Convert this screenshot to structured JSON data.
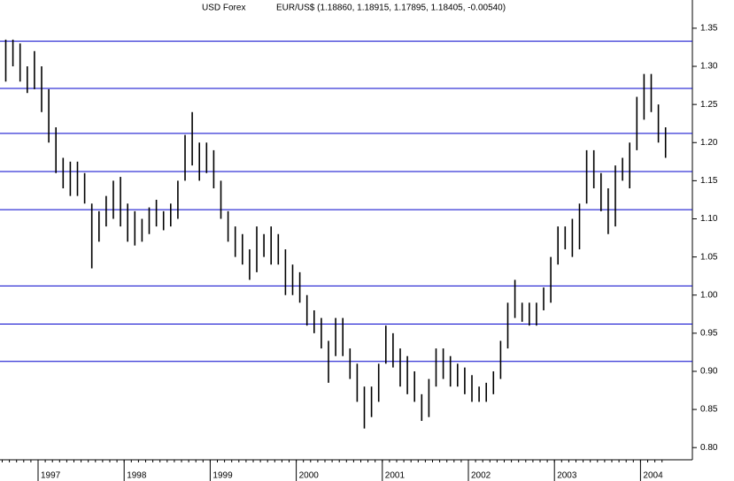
{
  "chart_data": {
    "type": "hilo",
    "title": "USD Forex",
    "subtitle": "EUR/US$ (1.18860, 1.18915, 1.17895, 1.18405, -0.00540)",
    "categories": [
      null,
      null,
      null,
      null,
      null,
      "1997",
      null,
      null,
      null,
      null,
      null,
      null,
      null,
      null,
      null,
      null,
      null,
      "1998",
      null,
      null,
      null,
      null,
      null,
      null,
      null,
      null,
      null,
      null,
      null,
      "1999",
      null,
      null,
      null,
      null,
      null,
      null,
      null,
      null,
      null,
      null,
      null,
      "2000",
      null,
      null,
      null,
      null,
      null,
      null,
      null,
      null,
      null,
      null,
      null,
      "2001",
      null,
      null,
      null,
      null,
      null,
      null,
      null,
      null,
      null,
      null,
      null,
      "2002",
      null,
      null,
      null,
      null,
      null,
      null,
      null,
      null,
      null,
      null,
      null,
      "2003",
      null,
      null,
      null,
      null,
      null,
      null,
      null,
      null,
      null,
      null,
      null,
      "2004",
      null,
      null,
      null
    ],
    "high": [
      1.335,
      1.335,
      1.33,
      1.3,
      1.32,
      1.3,
      1.27,
      1.22,
      1.18,
      1.175,
      1.175,
      1.16,
      1.12,
      1.11,
      1.13,
      1.15,
      1.155,
      1.12,
      1.11,
      1.1,
      1.115,
      1.125,
      1.11,
      1.12,
      1.15,
      1.21,
      1.24,
      1.2,
      1.2,
      1.19,
      1.15,
      1.11,
      1.09,
      1.08,
      1.06,
      1.09,
      1.08,
      1.09,
      1.08,
      1.06,
      1.04,
      1.03,
      1.0,
      0.98,
      0.97,
      0.94,
      0.97,
      0.97,
      0.93,
      0.91,
      0.88,
      0.88,
      0.91,
      0.96,
      0.95,
      0.93,
      0.92,
      0.9,
      0.87,
      0.89,
      0.93,
      0.93,
      0.92,
      0.91,
      0.905,
      0.895,
      0.88,
      0.885,
      0.9,
      0.94,
      0.99,
      1.02,
      0.99,
      0.99,
      0.99,
      1.01,
      1.05,
      1.09,
      1.09,
      1.1,
      1.12,
      1.19,
      1.19,
      1.16,
      1.14,
      1.17,
      1.18,
      1.2,
      1.26,
      1.29,
      1.29,
      1.25,
      1.22
    ],
    "low": [
      1.28,
      1.3,
      1.28,
      1.265,
      1.27,
      1.24,
      1.2,
      1.16,
      1.14,
      1.13,
      1.13,
      1.12,
      1.035,
      1.07,
      1.09,
      1.1,
      1.09,
      1.07,
      1.065,
      1.07,
      1.08,
      1.09,
      1.085,
      1.09,
      1.1,
      1.15,
      1.17,
      1.15,
      1.16,
      1.14,
      1.1,
      1.07,
      1.05,
      1.04,
      1.02,
      1.03,
      1.05,
      1.04,
      1.04,
      1.0,
      1.0,
      0.99,
      0.96,
      0.95,
      0.93,
      0.885,
      0.92,
      0.92,
      0.89,
      0.86,
      0.825,
      0.84,
      0.86,
      0.91,
      0.905,
      0.88,
      0.87,
      0.86,
      0.835,
      0.84,
      0.88,
      0.89,
      0.88,
      0.88,
      0.87,
      0.86,
      0.86,
      0.86,
      0.87,
      0.89,
      0.93,
      0.97,
      0.965,
      0.96,
      0.96,
      0.98,
      0.99,
      1.04,
      1.06,
      1.05,
      1.06,
      1.12,
      1.14,
      1.11,
      1.08,
      1.09,
      1.15,
      1.14,
      1.19,
      1.23,
      1.24,
      1.2,
      1.18
    ],
    "color": "#000000",
    "hlines": [
      1.333,
      1.271,
      1.212,
      1.162,
      1.112,
      1.012,
      0.962,
      0.913
    ],
    "hline_color": "#0000cc",
    "ylim": [
      0.784,
      1.387
    ],
    "yticks": [
      {
        "value": 0.8,
        "label": "0.80"
      },
      0.85,
      {
        "value": 0.9,
        "label": "0.90"
      },
      0.95,
      {
        "value": 1.0,
        "label": "1.00"
      },
      1.05,
      {
        "value": 1.1,
        "label": "1.10"
      },
      1.15,
      {
        "value": 1.2,
        "label": "1.20"
      },
      1.25,
      {
        "value": 1.3,
        "label": "1.30"
      },
      1.35
    ]
  }
}
